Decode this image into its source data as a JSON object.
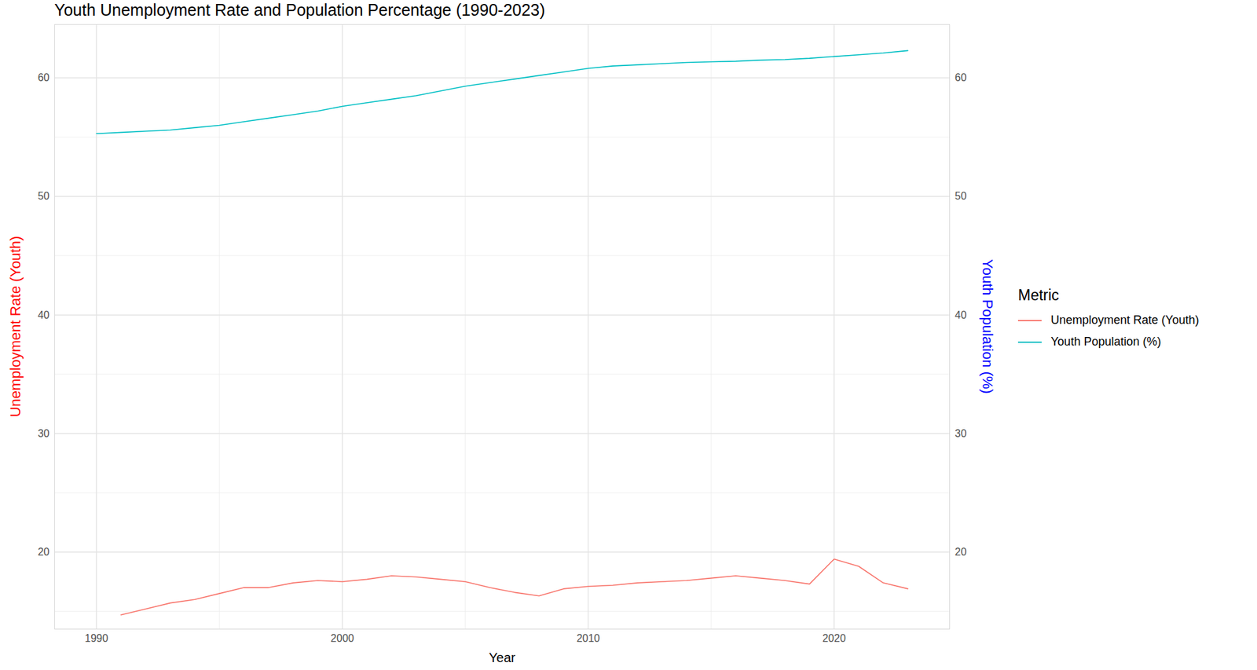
{
  "chart_data": {
    "type": "line",
    "title": "Youth Unemployment Rate and Population Percentage (1990-2023)",
    "x_label": "Year",
    "y_label": "Unemployment Rate (Youth)",
    "y2_label": "Youth Population (%)",
    "legend_title": "Metric",
    "x": [
      1990,
      1991,
      1992,
      1993,
      1994,
      1995,
      1996,
      1997,
      1998,
      1999,
      2000,
      2001,
      2002,
      2003,
      2004,
      2005,
      2006,
      2007,
      2008,
      2009,
      2010,
      2011,
      2012,
      2013,
      2014,
      2015,
      2016,
      2017,
      2018,
      2019,
      2020,
      2021,
      2022,
      2023
    ],
    "series": [
      {
        "name": "Unemployment Rate (Youth)",
        "color": "#F8766D",
        "values": [
          null,
          14.7,
          15.2,
          15.7,
          16.0,
          16.5,
          17.0,
          17.0,
          17.4,
          17.6,
          17.5,
          17.7,
          18.0,
          17.9,
          17.7,
          17.5,
          17.0,
          16.6,
          16.3,
          16.9,
          17.1,
          17.2,
          17.4,
          17.5,
          17.6,
          17.8,
          18.0,
          17.8,
          17.6,
          17.3,
          19.4,
          18.8,
          17.4,
          16.9
        ]
      },
      {
        "name": "Youth Population (%)",
        "color": "#00BFC4",
        "axis": "y2",
        "values": [
          55.3,
          55.4,
          55.5,
          55.6,
          55.8,
          56.0,
          56.3,
          56.6,
          56.9,
          57.2,
          57.6,
          57.9,
          58.2,
          58.5,
          58.9,
          59.3,
          59.6,
          59.9,
          60.2,
          60.5,
          60.8,
          61.0,
          61.1,
          61.2,
          61.3,
          61.35,
          61.4,
          61.5,
          61.55,
          61.65,
          61.8,
          61.95,
          62.1,
          62.3
        ]
      }
    ],
    "xlim": [
      1988.3,
      2024.7
    ],
    "xticks": [
      1990,
      2000,
      2010,
      2020
    ],
    "ylim": [
      13.5,
      64.5
    ],
    "yticks": [
      20,
      30,
      40,
      50,
      60
    ],
    "y2lim": [
      13.5,
      64.5
    ],
    "y2ticks": [
      20,
      30,
      40,
      50,
      60
    ],
    "grid": true,
    "legend": "right"
  }
}
